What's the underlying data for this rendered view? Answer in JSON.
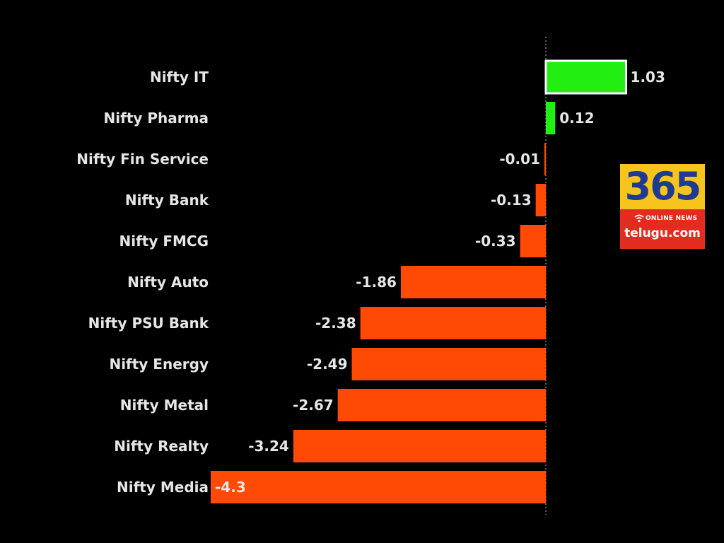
{
  "chart_data": {
    "type": "bar",
    "orientation": "horizontal",
    "categories": [
      "Nifty IT",
      "Nifty Pharma",
      "Nifty Fin Service",
      "Nifty Bank",
      "Nifty FMCG",
      "Nifty Auto",
      "Nifty PSU Bank",
      "Nifty Energy",
      "Nifty Metal",
      "Nifty Realty",
      "Nifty Media"
    ],
    "values": [
      1.03,
      0.12,
      -0.01,
      -0.13,
      -0.33,
      -1.86,
      -2.38,
      -2.49,
      -2.67,
      -3.24,
      -4.3
    ],
    "value_labels": [
      "1.03",
      "0.12",
      "-0.01",
      "-0.13",
      "-0.33",
      "-1.86",
      "-2.38",
      "-2.49",
      "-2.67",
      "-3.24",
      "-4.3"
    ],
    "title": "",
    "xlabel": "",
    "ylabel": "",
    "xlim": [
      -4.3,
      1.03
    ],
    "grid": false,
    "legend": "none",
    "colors": {
      "positive": "#22ee11",
      "positive_outline": "#ffffff",
      "negative": "#ff4a06",
      "zero_line": "#bbbbbb",
      "background": "#000000",
      "text": "#e6e6e6"
    }
  },
  "badge": {
    "number": "365",
    "subtitle": "ONLINE NEWS",
    "site": "telugu.com",
    "colors": {
      "top": "#f7c41e",
      "number": "#1f3a93",
      "bottom": "#e32b1f"
    }
  }
}
